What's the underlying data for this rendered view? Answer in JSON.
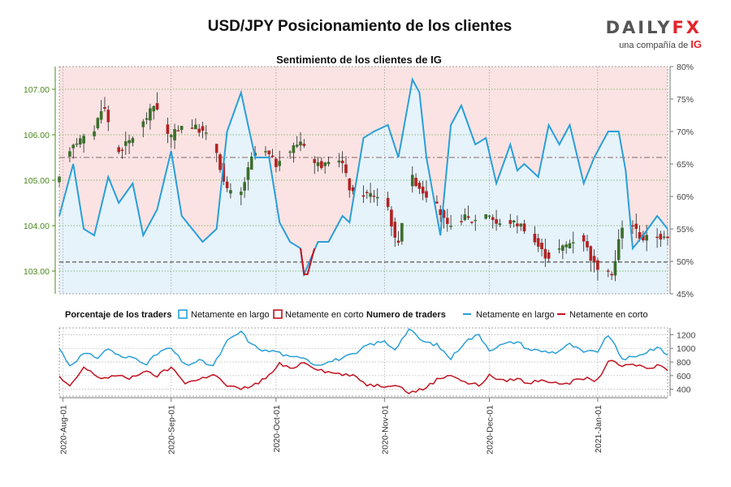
{
  "title": "USD/JPY Posicionamiento de los clientes",
  "logo": {
    "name_part1": "DAILY",
    "name_part2": "FX",
    "subtitle": "una compañía de",
    "brand": "IG"
  },
  "colors": {
    "long": "#2a9fd8",
    "short": "#c1121f",
    "candle_up": "#3a6e2a",
    "candle_down": "#b22222",
    "upper_band": "#fbe3e3",
    "lower_band": "#e6f3fb",
    "price_axis": "#4a8a1c"
  },
  "chart_data": [
    {
      "type": "candlestick",
      "title": "Sentimiento de los clientes de IG",
      "x_ticks": [
        "2020-Aug-01",
        "2020-Sep-01",
        "2020-Oct-01",
        "2020-Nov-01",
        "2020-Dec-01",
        "2021-Jan-01"
      ],
      "x_range": [
        "2020-07-31",
        "2021-01-21"
      ],
      "left_axis": {
        "ticks": [
          "103.00",
          "104.00",
          "105.00",
          "106.00",
          "107.00"
        ],
        "range": [
          102.5,
          107.5
        ]
      },
      "right_axis": {
        "ticks": [
          "45%",
          "50%",
          "55%",
          "60%",
          "65%",
          "70%",
          "75%",
          "80%"
        ],
        "range": [
          45,
          80
        ]
      },
      "reference_lines": {
        "price_dashed": 103.2,
        "percent_dashed": 66
      },
      "price_anchors": [
        [
          "2020-07-31",
          104.9
        ],
        [
          "2020-08-04",
          105.8
        ],
        [
          "2020-08-10",
          106.0
        ],
        [
          "2020-08-13",
          106.7
        ],
        [
          "2020-08-17",
          105.6
        ],
        [
          "2020-08-21",
          105.9
        ],
        [
          "2020-08-24",
          106.2
        ],
        [
          "2020-08-28",
          106.7
        ],
        [
          "2020-09-01",
          105.9
        ],
        [
          "2020-09-04",
          106.2
        ],
        [
          "2020-09-07",
          106.2
        ],
        [
          "2020-09-10",
          106.1
        ],
        [
          "2020-09-14",
          105.8
        ],
        [
          "2020-09-17",
          104.8
        ],
        [
          "2020-09-21",
          104.6
        ],
        [
          "2020-09-25",
          105.6
        ],
        [
          "2020-09-29",
          105.6
        ],
        [
          "2020-10-02",
          105.3
        ],
        [
          "2020-10-06",
          105.7
        ],
        [
          "2020-10-09",
          105.9
        ],
        [
          "2020-10-12",
          105.4
        ],
        [
          "2020-10-16",
          105.3
        ],
        [
          "2020-10-20",
          105.5
        ],
        [
          "2020-10-23",
          104.7
        ],
        [
          "2020-10-28",
          104.7
        ],
        [
          "2020-11-02",
          104.6
        ],
        [
          "2020-11-05",
          103.5
        ],
        [
          "2020-11-09",
          105.1
        ],
        [
          "2020-11-12",
          104.8
        ],
        [
          "2020-11-16",
          104.5
        ],
        [
          "2020-11-20",
          103.9
        ],
        [
          "2020-11-24",
          104.2
        ],
        [
          "2020-11-27",
          104.1
        ],
        [
          "2020-12-01",
          104.3
        ],
        [
          "2020-12-04",
          104.0
        ],
        [
          "2020-12-07",
          104.1
        ],
        [
          "2020-12-11",
          104.0
        ],
        [
          "2020-12-15",
          103.6
        ],
        [
          "2020-12-18",
          103.3
        ],
        [
          "2020-12-22",
          103.5
        ],
        [
          "2020-12-28",
          103.8
        ],
        [
          "2020-12-31",
          103.2
        ],
        [
          "2021-01-04",
          102.9
        ],
        [
          "2021-01-06",
          103.0
        ],
        [
          "2021-01-08",
          103.9
        ],
        [
          "2021-01-11",
          104.1
        ],
        [
          "2021-01-14",
          103.7
        ],
        [
          "2021-01-18",
          103.8
        ],
        [
          "2021-01-21",
          103.7
        ]
      ],
      "percent_long_anchors": [
        [
          "2020-07-31",
          57
        ],
        [
          "2020-08-04",
          65
        ],
        [
          "2020-08-07",
          55
        ],
        [
          "2020-08-10",
          54
        ],
        [
          "2020-08-14",
          63
        ],
        [
          "2020-08-17",
          59
        ],
        [
          "2020-08-21",
          62
        ],
        [
          "2020-08-24",
          54
        ],
        [
          "2020-08-28",
          58
        ],
        [
          "2020-09-01",
          67
        ],
        [
          "2020-09-04",
          57
        ],
        [
          "2020-09-07",
          55
        ],
        [
          "2020-09-10",
          53
        ],
        [
          "2020-09-14",
          55
        ],
        [
          "2020-09-17",
          70
        ],
        [
          "2020-09-21",
          76
        ],
        [
          "2020-09-25",
          66
        ],
        [
          "2020-09-29",
          66
        ],
        [
          "2020-10-02",
          56
        ],
        [
          "2020-10-05",
          53
        ],
        [
          "2020-10-08",
          52
        ],
        [
          "2020-10-09",
          48
        ],
        [
          "2020-10-13",
          53
        ],
        [
          "2020-10-16",
          53
        ],
        [
          "2020-10-20",
          57
        ],
        [
          "2020-10-22",
          56
        ],
        [
          "2020-10-26",
          69
        ],
        [
          "2020-10-29",
          70
        ],
        [
          "2020-11-02",
          71
        ],
        [
          "2020-11-05",
          66
        ],
        [
          "2020-11-09",
          78
        ],
        [
          "2020-11-11",
          76
        ],
        [
          "2020-11-13",
          66
        ],
        [
          "2020-11-17",
          54
        ],
        [
          "2020-11-20",
          71
        ],
        [
          "2020-11-23",
          74
        ],
        [
          "2020-11-27",
          68
        ],
        [
          "2020-11-30",
          69
        ],
        [
          "2020-12-03",
          62
        ],
        [
          "2020-12-07",
          68
        ],
        [
          "2020-12-09",
          64
        ],
        [
          "2020-12-11",
          65
        ],
        [
          "2020-12-15",
          63
        ],
        [
          "2020-12-18",
          71
        ],
        [
          "2020-12-21",
          68
        ],
        [
          "2020-12-24",
          71
        ],
        [
          "2020-12-28",
          62
        ],
        [
          "2020-12-31",
          66
        ],
        [
          "2021-01-04",
          70
        ],
        [
          "2021-01-07",
          70
        ],
        [
          "2021-01-09",
          64
        ],
        [
          "2021-01-11",
          52
        ],
        [
          "2021-01-14",
          54
        ],
        [
          "2021-01-18",
          57
        ],
        [
          "2021-01-21",
          55
        ]
      ],
      "percent_short_dip_anchors": [
        [
          "2020-10-08",
          52
        ],
        [
          "2020-10-09",
          48
        ],
        [
          "2020-10-10",
          48
        ],
        [
          "2020-10-12",
          52
        ]
      ]
    },
    {
      "type": "line",
      "y_ticks": [
        400,
        600,
        800,
        1000,
        1200
      ],
      "y_range": [
        300,
        1300
      ],
      "series": [
        {
          "name": "Netamente en largo",
          "anchors": [
            [
              "2020-07-31",
              1000
            ],
            [
              "2020-08-03",
              750
            ],
            [
              "2020-08-07",
              920
            ],
            [
              "2020-08-11",
              870
            ],
            [
              "2020-08-14",
              1000
            ],
            [
              "2020-08-18",
              860
            ],
            [
              "2020-08-21",
              870
            ],
            [
              "2020-08-25",
              780
            ],
            [
              "2020-08-29",
              960
            ],
            [
              "2020-09-01",
              1000
            ],
            [
              "2020-09-05",
              750
            ],
            [
              "2020-09-09",
              820
            ],
            [
              "2020-09-13",
              740
            ],
            [
              "2020-09-17",
              1100
            ],
            [
              "2020-09-21",
              1250
            ],
            [
              "2020-09-24",
              1050
            ],
            [
              "2020-09-28",
              960
            ],
            [
              "2020-10-01",
              960
            ],
            [
              "2020-10-05",
              860
            ],
            [
              "2020-10-09",
              880
            ],
            [
              "2020-10-12",
              760
            ],
            [
              "2020-10-16",
              800
            ],
            [
              "2020-10-20",
              860
            ],
            [
              "2020-10-24",
              920
            ],
            [
              "2020-10-27",
              1050
            ],
            [
              "2020-11-01",
              1100
            ],
            [
              "2020-11-04",
              990
            ],
            [
              "2020-11-08",
              1280
            ],
            [
              "2020-11-12",
              1100
            ],
            [
              "2020-11-16",
              1050
            ],
            [
              "2020-11-20",
              850
            ],
            [
              "2020-11-24",
              1100
            ],
            [
              "2020-11-28",
              1200
            ],
            [
              "2020-12-01",
              980
            ],
            [
              "2020-12-05",
              1060
            ],
            [
              "2020-12-09",
              1100
            ],
            [
              "2020-12-12",
              990
            ],
            [
              "2020-12-16",
              960
            ],
            [
              "2020-12-20",
              940
            ],
            [
              "2020-12-24",
              1060
            ],
            [
              "2020-12-28",
              940
            ],
            [
              "2021-01-01",
              960
            ],
            [
              "2021-01-04",
              1200
            ],
            [
              "2021-01-08",
              850
            ],
            [
              "2021-01-12",
              870
            ],
            [
              "2021-01-16",
              980
            ],
            [
              "2021-01-19",
              1000
            ],
            [
              "2021-01-21",
              900
            ]
          ]
        },
        {
          "name": "Netamente en corto",
          "anchors": [
            [
              "2020-07-31",
              580
            ],
            [
              "2020-08-03",
              430
            ],
            [
              "2020-08-07",
              720
            ],
            [
              "2020-08-09",
              650
            ],
            [
              "2020-08-12",
              560
            ],
            [
              "2020-08-16",
              600
            ],
            [
              "2020-08-20",
              560
            ],
            [
              "2020-08-24",
              660
            ],
            [
              "2020-08-28",
              600
            ],
            [
              "2020-09-01",
              720
            ],
            [
              "2020-09-05",
              500
            ],
            [
              "2020-09-09",
              540
            ],
            [
              "2020-09-13",
              630
            ],
            [
              "2020-09-17",
              450
            ],
            [
              "2020-09-21",
              400
            ],
            [
              "2020-09-25",
              470
            ],
            [
              "2020-09-29",
              600
            ],
            [
              "2020-10-02",
              770
            ],
            [
              "2020-10-05",
              700
            ],
            [
              "2020-10-09",
              800
            ],
            [
              "2020-10-12",
              720
            ],
            [
              "2020-10-16",
              650
            ],
            [
              "2020-10-20",
              620
            ],
            [
              "2020-10-24",
              580
            ],
            [
              "2020-10-27",
              470
            ],
            [
              "2020-11-01",
              450
            ],
            [
              "2020-11-04",
              480
            ],
            [
              "2020-11-08",
              350
            ],
            [
              "2020-11-12",
              400
            ],
            [
              "2020-11-16",
              540
            ],
            [
              "2020-11-20",
              620
            ],
            [
              "2020-11-24",
              500
            ],
            [
              "2020-11-28",
              460
            ],
            [
              "2020-12-01",
              600
            ],
            [
              "2020-12-05",
              520
            ],
            [
              "2020-12-09",
              560
            ],
            [
              "2020-12-12",
              480
            ],
            [
              "2020-12-16",
              550
            ],
            [
              "2020-12-20",
              480
            ],
            [
              "2020-12-24",
              500
            ],
            [
              "2020-12-28",
              560
            ],
            [
              "2021-01-01",
              530
            ],
            [
              "2021-01-04",
              820
            ],
            [
              "2021-01-08",
              740
            ],
            [
              "2021-01-12",
              760
            ],
            [
              "2021-01-16",
              700
            ],
            [
              "2021-01-19",
              770
            ],
            [
              "2021-01-21",
              700
            ]
          ]
        }
      ]
    }
  ],
  "legend": {
    "pct_title": "Porcentaje de los traders",
    "pct_long": "Netamente en largo",
    "pct_short": "Netamente en corto",
    "num_title": "Numero de traders",
    "num_long": "Netamente en largo",
    "num_short": "Netamente en corto"
  }
}
